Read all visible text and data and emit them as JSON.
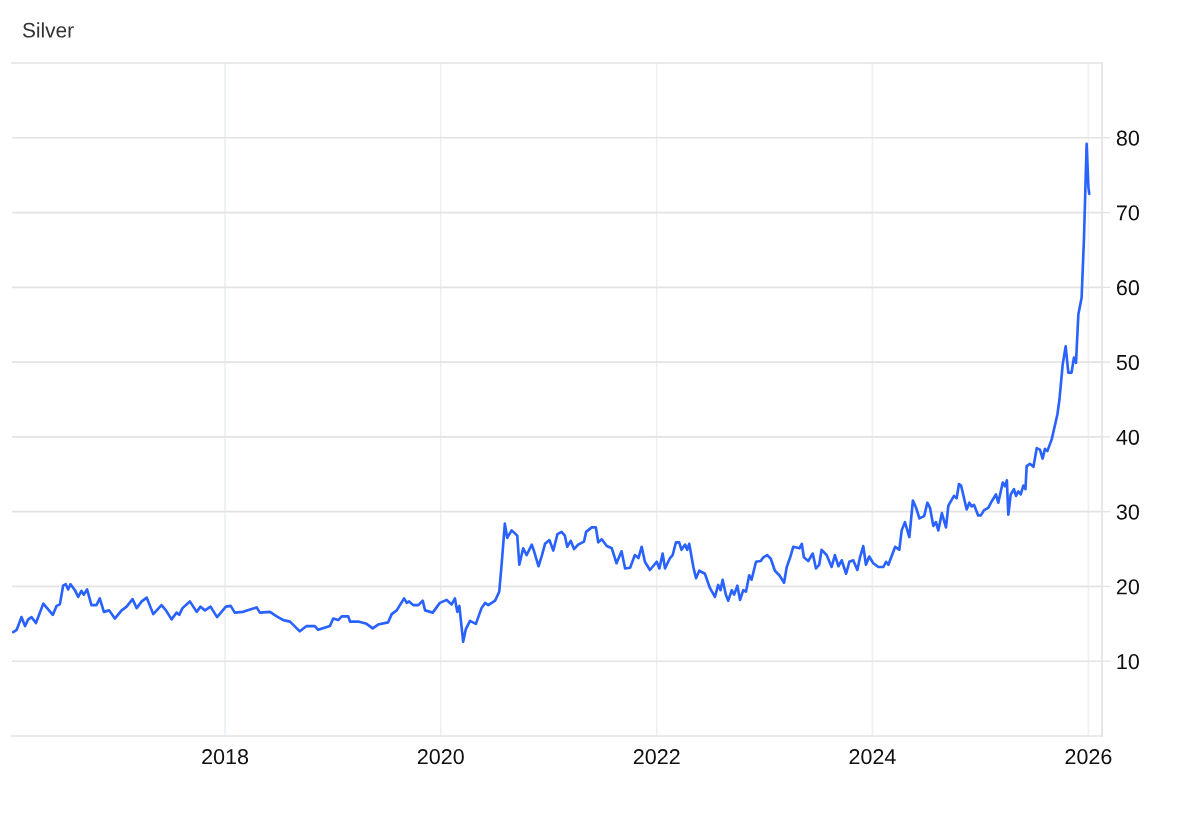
{
  "chart_data": {
    "type": "line",
    "title": "Silver",
    "x": [
      "2016-01-15",
      "2016-01-27",
      "2016-02-12",
      "2016-02-24",
      "2016-03-06",
      "2016-03-17",
      "2016-04-01",
      "2016-04-26",
      "2016-05-28",
      "2016-06-10",
      "2016-06-21",
      "2016-07-02",
      "2016-07-11",
      "2016-07-19",
      "2016-07-27",
      "2016-08-11",
      "2016-08-22",
      "2016-09-02",
      "2016-09-10",
      "2016-09-21",
      "2016-10-06",
      "2016-10-23",
      "2016-11-03",
      "2016-11-17",
      "2016-12-05",
      "2016-12-24",
      "2017-01-16",
      "2017-02-02",
      "2017-02-22",
      "2017-03-08",
      "2017-03-25",
      "2017-04-11",
      "2017-05-03",
      "2017-05-31",
      "2017-06-15",
      "2017-07-04",
      "2017-07-21",
      "2017-07-30",
      "2017-08-10",
      "2017-09-04",
      "2017-09-27",
      "2017-10-10",
      "2017-10-25",
      "2017-11-13",
      "2017-12-05",
      "2018-01-04",
      "2018-01-20",
      "2018-02-03",
      "2018-03-03",
      "2018-04-18",
      "2018-04-29",
      "2018-06-02",
      "2018-06-25",
      "2018-07-17",
      "2018-08-09",
      "2018-09-11",
      "2018-10-04",
      "2018-11-01",
      "2018-11-12",
      "2018-12-22",
      "2019-01-02",
      "2019-01-19",
      "2019-01-31",
      "2019-02-22",
      "2019-02-28",
      "2019-03-28",
      "2019-04-25",
      "2019-05-16",
      "2019-06-03",
      "2019-07-07",
      "2019-07-19",
      "2019-08-05",
      "2019-08-30",
      "2019-09-08",
      "2019-09-16",
      "2019-09-30",
      "2019-10-17",
      "2019-11-01",
      "2019-11-09",
      "2019-12-05",
      "2019-12-29",
      "2020-01-21",
      "2020-02-07",
      "2020-02-18",
      "2020-02-26",
      "2020-03-04",
      "2020-03-17",
      "2020-03-26",
      "2020-04-09",
      "2020-04-29",
      "2020-05-18",
      "2020-05-30",
      "2020-06-10",
      "2020-07-03",
      "2020-07-17",
      "2020-07-25",
      "2020-08-05",
      "2020-08-13",
      "2020-08-28",
      "2020-09-16",
      "2020-09-23",
      "2020-10-06",
      "2020-10-18",
      "2020-11-04",
      "2020-11-12",
      "2020-11-27",
      "2020-12-08",
      "2020-12-19",
      "2021-01-03",
      "2021-01-16",
      "2021-01-30",
      "2021-02-13",
      "2021-02-24",
      "2021-03-04",
      "2021-03-16",
      "2021-03-27",
      "2021-04-10",
      "2021-04-30",
      "2021-05-07",
      "2021-05-26",
      "2021-06-09",
      "2021-06-17",
      "2021-06-29",
      "2021-07-16",
      "2021-08-02",
      "2021-08-18",
      "2021-09-04",
      "2021-09-16",
      "2021-10-03",
      "2021-10-19",
      "2021-10-31",
      "2021-11-11",
      "2021-11-22",
      "2021-12-09",
      "2022-01-01",
      "2022-01-10",
      "2022-01-21",
      "2022-01-29",
      "2022-02-15",
      "2022-02-24",
      "2022-03-07",
      "2022-03-18",
      "2022-03-26",
      "2022-04-07",
      "2022-04-14",
      "2022-04-21",
      "2022-05-05",
      "2022-05-14",
      "2022-05-25",
      "2022-06-13",
      "2022-06-30",
      "2022-07-17",
      "2022-07-28",
      "2022-08-05",
      "2022-08-12",
      "2022-08-23",
      "2022-08-31",
      "2022-09-12",
      "2022-09-20",
      "2022-10-01",
      "2022-10-10",
      "2022-10-21",
      "2022-10-30",
      "2022-11-10",
      "2022-11-18",
      "2022-12-03",
      "2022-12-19",
      "2022-12-28",
      "2023-01-10",
      "2023-01-22",
      "2023-02-05",
      "2023-02-20",
      "2023-02-28",
      "2023-03-08",
      "2023-03-17",
      "2023-03-28",
      "2023-04-08",
      "2023-04-29",
      "2023-05-07",
      "2023-05-14",
      "2023-05-29",
      "2023-06-13",
      "2023-06-24",
      "2023-07-05",
      "2023-07-13",
      "2023-07-30",
      "2023-08-16",
      "2023-08-27",
      "2023-09-08",
      "2023-09-19",
      "2023-10-04",
      "2023-10-15",
      "2023-10-28",
      "2023-11-11",
      "2023-11-20",
      "2023-12-01",
      "2023-12-10",
      "2023-12-21",
      "2024-01-04",
      "2024-01-21",
      "2024-02-07",
      "2024-02-16",
      "2024-02-24",
      "2024-03-18",
      "2024-04-01",
      "2024-04-09",
      "2024-04-20",
      "2024-05-05",
      "2024-05-17",
      "2024-05-28",
      "2024-06-08",
      "2024-06-24",
      "2024-07-05",
      "2024-07-14",
      "2024-07-25",
      "2024-08-03",
      "2024-08-11",
      "2024-08-23",
      "2024-09-06",
      "2024-09-14",
      "2024-10-03",
      "2024-10-12",
      "2024-10-20",
      "2024-10-27",
      "2024-11-15",
      "2024-11-24",
      "2024-12-02",
      "2024-12-10",
      "2024-12-24",
      "2025-01-02",
      "2025-01-13",
      "2025-01-27",
      "2025-02-08",
      "2025-02-22",
      "2025-03-02",
      "2025-03-17",
      "2025-03-25",
      "2025-03-31",
      "2025-04-05",
      "2025-04-13",
      "2025-04-24",
      "2025-05-01",
      "2025-05-09",
      "2025-05-17",
      "2025-05-26",
      "2025-06-02",
      "2025-06-06",
      "2025-06-17",
      "2025-06-29",
      "2025-07-10",
      "2025-07-21",
      "2025-07-30",
      "2025-08-07",
      "2025-08-15",
      "2025-08-30",
      "2025-09-18",
      "2025-09-25",
      "2025-10-06",
      "2025-10-16",
      "2025-10-25",
      "2025-11-05",
      "2025-11-13",
      "2025-11-20",
      "2025-11-28",
      "2025-12-09",
      "2025-12-17",
      "2025-12-26",
      "2026-01-01",
      "2026-01-04"
    ],
    "series": [
      {
        "color": "#2962ff",
        "values": [
          13.9,
          14.2,
          15.9,
          14.7,
          15.6,
          15.9,
          15.1,
          17.7,
          16.2,
          17.4,
          17.6,
          20.1,
          20.3,
          19.6,
          20.3,
          19.5,
          18.6,
          19.4,
          18.9,
          19.6,
          17.5,
          17.5,
          18.4,
          16.6,
          16.8,
          15.7,
          16.8,
          17.3,
          18.3,
          17.1,
          18.0,
          18.5,
          16.3,
          17.5,
          16.8,
          15.6,
          16.5,
          16.2,
          17.1,
          18.0,
          16.6,
          17.3,
          16.8,
          17.3,
          15.9,
          17.3,
          17.4,
          16.5,
          16.6,
          17.2,
          16.5,
          16.6,
          16.0,
          15.5,
          15.3,
          14.0,
          14.7,
          14.7,
          14.2,
          14.7,
          15.7,
          15.5,
          16.0,
          16.0,
          15.3,
          15.3,
          15.0,
          14.4,
          14.9,
          15.2,
          16.3,
          16.8,
          18.4,
          17.8,
          18.0,
          17.5,
          17.5,
          18.1,
          16.8,
          16.5,
          17.8,
          18.2,
          17.6,
          18.4,
          16.6,
          17.4,
          12.6,
          14.3,
          15.4,
          15.0,
          17.1,
          17.8,
          17.5,
          18.1,
          19.3,
          22.9,
          28.4,
          26.5,
          27.5,
          26.8,
          22.9,
          25.1,
          24.2,
          25.6,
          24.7,
          22.7,
          24.1,
          25.7,
          26.2,
          24.8,
          27.0,
          27.3,
          26.8,
          25.3,
          26.1,
          25.0,
          25.6,
          26.0,
          27.3,
          27.9,
          27.9,
          25.9,
          26.3,
          25.4,
          25.1,
          23.1,
          24.7,
          22.4,
          22.5,
          24.2,
          23.8,
          25.3,
          23.3,
          22.2,
          23.3,
          22.4,
          24.4,
          22.4,
          23.8,
          24.2,
          25.9,
          25.9,
          24.9,
          25.6,
          24.9,
          25.7,
          22.6,
          21.1,
          22.1,
          21.7,
          19.8,
          18.6,
          20.2,
          19.5,
          20.9,
          18.9,
          18.1,
          19.5,
          18.9,
          20.1,
          18.2,
          19.5,
          19.3,
          21.5,
          20.9,
          23.3,
          23.4,
          23.9,
          24.2,
          23.7,
          22.1,
          21.5,
          21.0,
          20.5,
          22.6,
          23.8,
          25.3,
          25.1,
          25.7,
          23.9,
          23.4,
          24.4,
          22.4,
          22.9,
          24.9,
          24.2,
          22.6,
          24.2,
          22.7,
          23.5,
          21.7,
          23.3,
          23.5,
          22.2,
          23.9,
          25.4,
          22.9,
          24.0,
          23.1,
          22.6,
          22.6,
          23.3,
          22.9,
          25.3,
          24.9,
          27.5,
          28.6,
          26.6,
          31.5,
          30.5,
          29.1,
          29.4,
          31.2,
          30.5,
          28.1,
          28.6,
          27.5,
          29.8,
          27.9,
          30.8,
          32.1,
          31.8,
          33.7,
          33.5,
          30.3,
          31.2,
          30.7,
          30.9,
          29.5,
          29.5,
          30.2,
          30.5,
          31.4,
          32.3,
          31.2,
          33.9,
          33.4,
          34.2,
          29.6,
          32.3,
          33.0,
          32.1,
          32.7,
          32.3,
          33.5,
          33.0,
          36.1,
          36.4,
          36.0,
          38.5,
          38.3,
          37.1,
          38.4,
          38.1,
          39.7,
          43.0,
          45.0,
          49.7,
          52.1,
          48.6,
          48.6,
          50.6,
          49.9,
          56.4,
          58.6,
          66.5,
          79.2,
          73.4,
          72.5
        ]
      }
    ],
    "xlim": [
      "2016-01-11",
      "2026-02-16"
    ],
    "xticks": [
      "2018",
      "2020",
      "2022",
      "2024",
      "2026"
    ],
    "ylim": [
      0,
      90
    ],
    "yticks": [
      10,
      20,
      30,
      40,
      50,
      60,
      70,
      80
    ],
    "grid": true
  }
}
